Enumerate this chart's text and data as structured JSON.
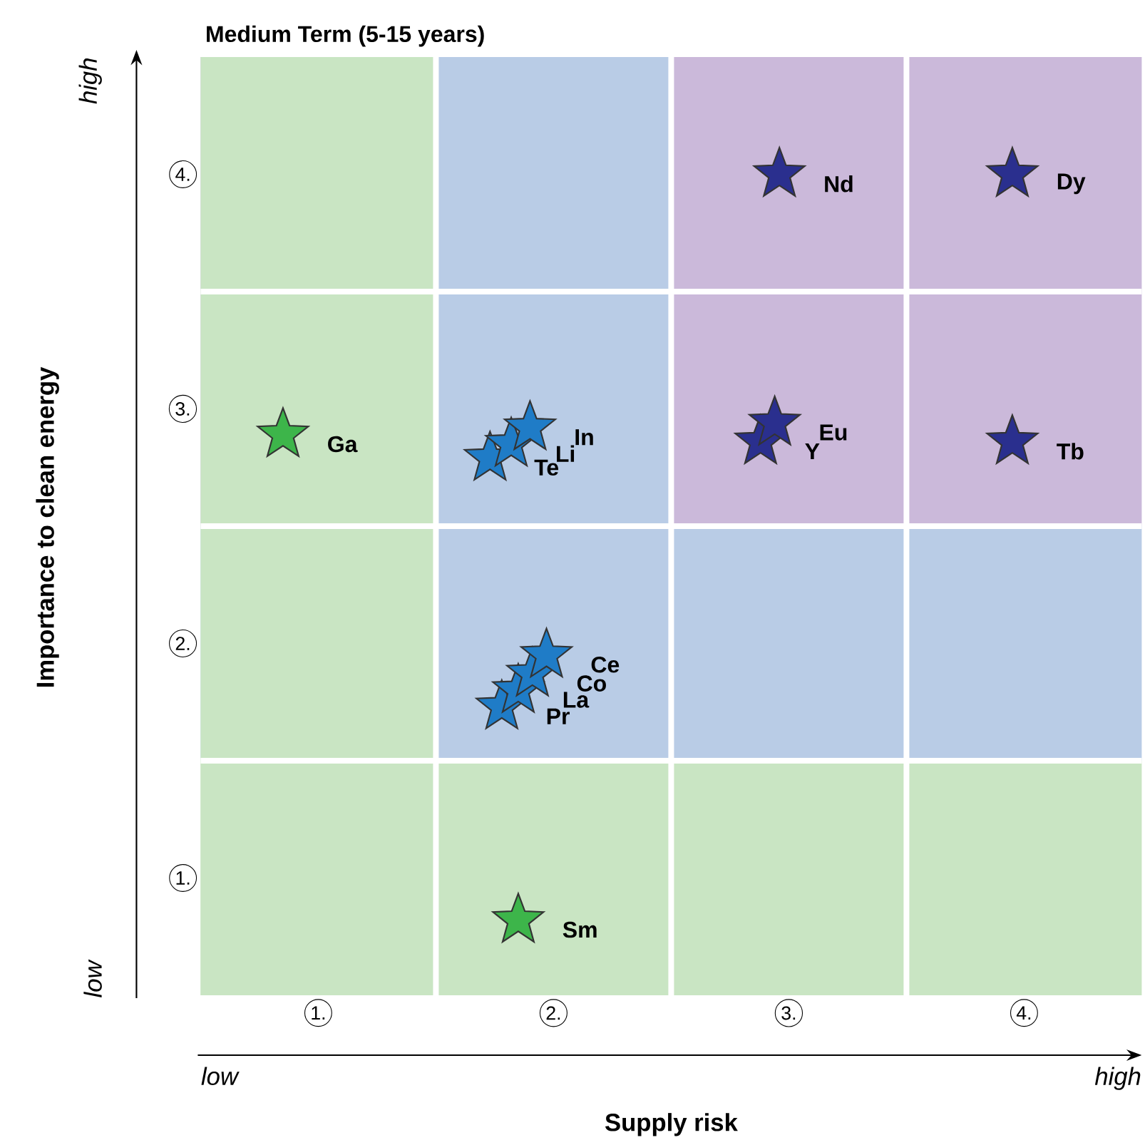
{
  "chart_data": {
    "type": "scatter",
    "title": "Medium Term (5-15 years)",
    "xlabel": "Supply risk",
    "ylabel": "Importance to clean energy",
    "xlim": [
      0.5,
      4.5
    ],
    "ylim": [
      0.5,
      4.5
    ],
    "xticks": [
      {
        "value": 1,
        "label": "1."
      },
      {
        "value": 2,
        "label": "2."
      },
      {
        "value": 3,
        "label": "3."
      },
      {
        "value": 4,
        "label": "4."
      }
    ],
    "yticks": [
      {
        "value": 1,
        "label": "1."
      },
      {
        "value": 2,
        "label": "2."
      },
      {
        "value": 3,
        "label": "3."
      },
      {
        "value": 4,
        "label": "4."
      }
    ],
    "marker": "star",
    "bands": [
      {
        "axis": "y",
        "from": 2.5,
        "to": 4.5,
        "color": "#cbb9da"
      },
      {
        "axis": "x",
        "from": 1.5,
        "to": 2.5,
        "color": "#b9cce6"
      },
      {
        "axis": "y",
        "from": 1.5,
        "to": 2.5,
        "color": "#b9cce6"
      },
      {
        "axis": "y",
        "from": 0.5,
        "to": 1.5,
        "color": "#c9e5c3"
      },
      {
        "axis": "x",
        "from": 0.5,
        "to": 1.5,
        "color": "#c9e5c3"
      }
    ],
    "series": [
      {
        "color": "#3db54a",
        "x": [
          0.85,
          1.85
        ],
        "values": [
          2.89,
          0.82
        ]
      },
      {
        "color": "#1f7cc7",
        "x": [
          1.73,
          1.82,
          1.9,
          1.78,
          1.85,
          1.91,
          1.97
        ],
        "values": [
          2.79,
          2.85,
          2.92,
          1.73,
          1.8,
          1.87,
          1.95
        ]
      },
      {
        "color": "#2a2f8e",
        "x": [
          2.96,
          3.95,
          2.88,
          2.94,
          3.95
        ],
        "values": [
          4.0,
          4.0,
          2.86,
          2.94,
          2.86
        ]
      }
    ],
    "annotations": [
      "low",
      "high",
      "low",
      "high",
      {
        "text": "Ga",
        "x": 0.85,
        "y": 2.89
      },
      {
        "text": "Sm",
        "x": 1.85,
        "y": 0.82
      },
      {
        "text": "Te",
        "x": 1.73,
        "y": 2.79
      },
      {
        "text": "Li",
        "x": 1.82,
        "y": 2.85
      },
      {
        "text": "In",
        "x": 1.9,
        "y": 2.92
      },
      {
        "text": "Pr",
        "x": 1.78,
        "y": 1.73
      },
      {
        "text": "La",
        "x": 1.85,
        "y": 1.8
      },
      {
        "text": "Co",
        "x": 1.91,
        "y": 1.87
      },
      {
        "text": "Ce",
        "x": 1.97,
        "y": 1.95
      },
      {
        "text": "Nd",
        "x": 2.96,
        "y": 4.0
      },
      {
        "text": "Dy",
        "x": 3.95,
        "y": 4.0
      },
      {
        "text": "Y",
        "x": 2.88,
        "y": 2.86
      },
      {
        "text": "Eu",
        "x": 2.94,
        "y": 2.94
      },
      {
        "text": "Tb",
        "x": 3.95,
        "y": 2.86
      }
    ]
  }
}
